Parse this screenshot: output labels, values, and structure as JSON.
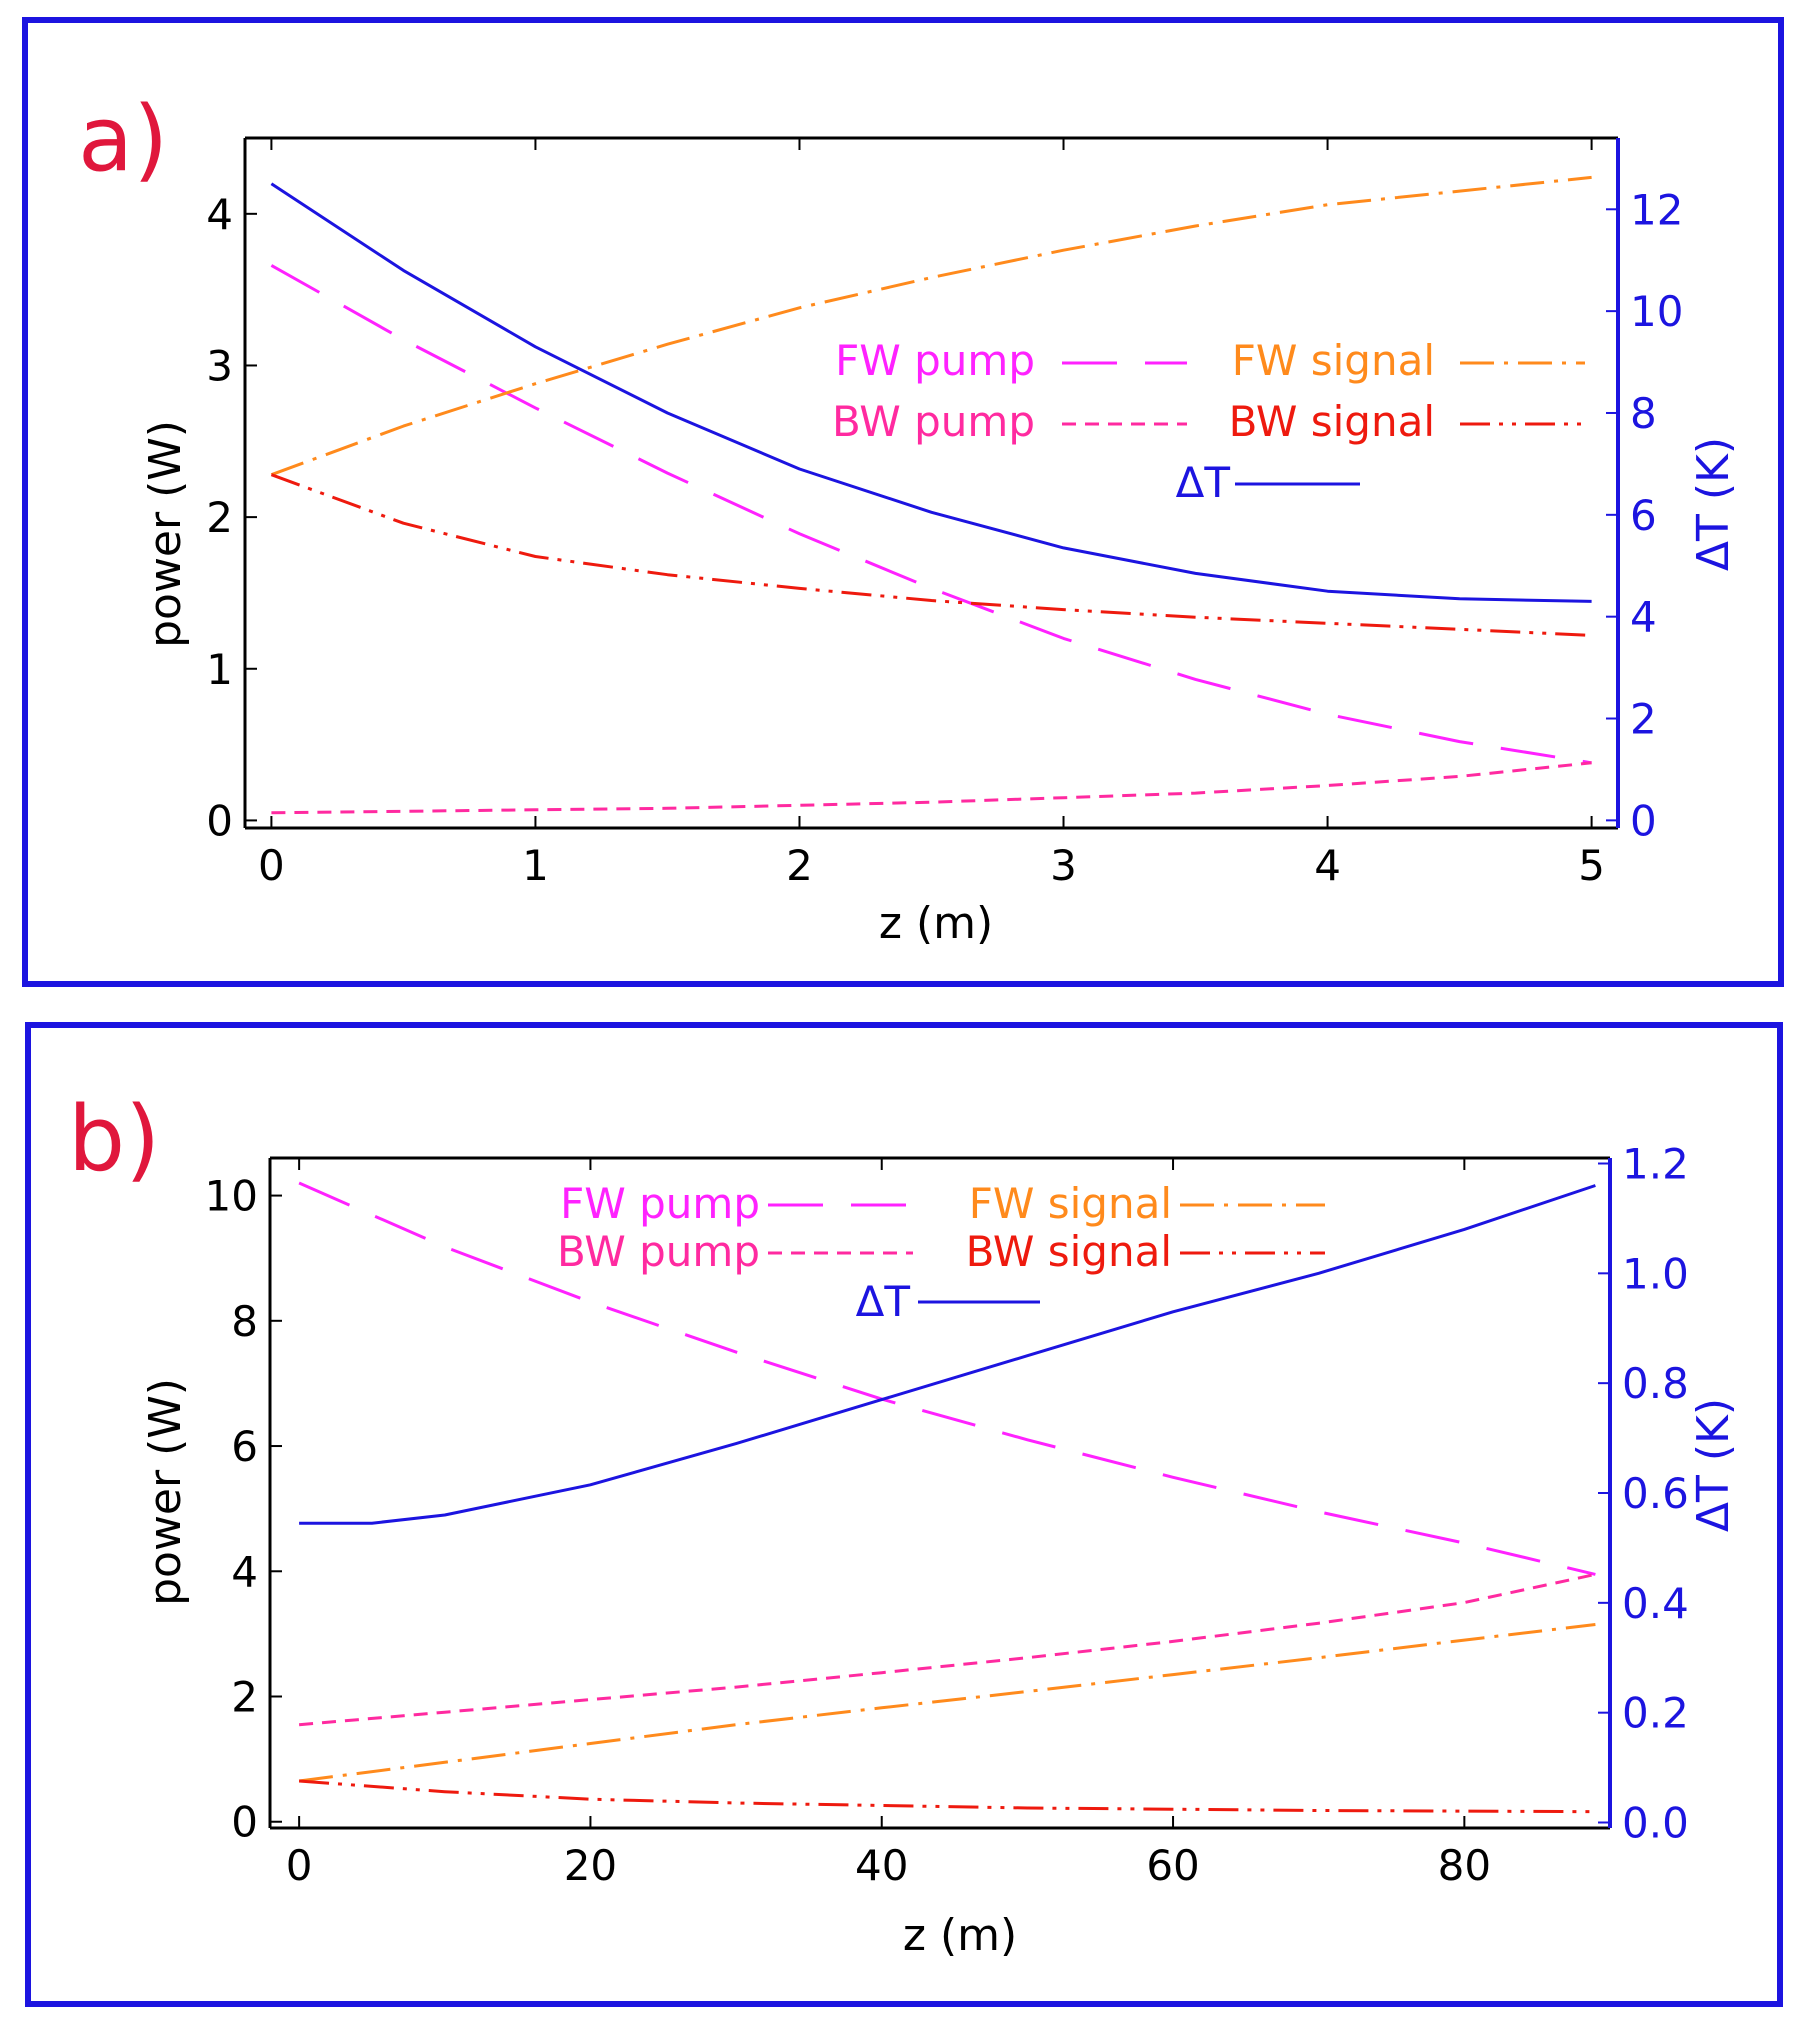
{
  "colors": {
    "frame": "#1c14e0",
    "panel_label": "#e0173c",
    "axis_left": "#000000",
    "axis_right": "#1c14e0",
    "fw_pump": "#ff22ff",
    "bw_pump": "#ff2aa0",
    "fw_signal": "#ff8a1c",
    "bw_signal": "#ee1a0e",
    "delta_t": "#1c14e0"
  },
  "chart_data": [
    {
      "panel": "a)",
      "type": "line",
      "xlabel": "z (m)",
      "ylabel": "power (W)",
      "ylabel2": "ΔT (K)",
      "xlim": [
        -0.1,
        5.1
      ],
      "ylim": [
        -0.05,
        4.5
      ],
      "y2lim": [
        -0.15,
        13.4
      ],
      "xticks": [
        0,
        1,
        2,
        3,
        4,
        5
      ],
      "yticks": [
        0,
        1,
        2,
        3,
        4
      ],
      "y2ticks": [
        0,
        2,
        4,
        6,
        8,
        10,
        12
      ],
      "legend": {
        "fw_pump": "FW pump",
        "fw_signal": "FW signal",
        "bw_pump": "BW pump",
        "bw_signal": "BW signal",
        "delta_t": "ΔT"
      },
      "series": [
        {
          "key": "fw_pump",
          "name": "FW pump",
          "axis": "left",
          "style": "longdash",
          "x": [
            0,
            0.5,
            1,
            1.5,
            2,
            2.5,
            3,
            3.5,
            4,
            4.5,
            5
          ],
          "y": [
            3.66,
            3.17,
            2.72,
            2.29,
            1.89,
            1.53,
            1.2,
            0.93,
            0.7,
            0.52,
            0.38
          ]
        },
        {
          "key": "bw_pump",
          "name": "BW pump",
          "axis": "left",
          "style": "shortdash",
          "x": [
            0,
            0.5,
            1,
            1.5,
            2,
            2.5,
            3,
            3.5,
            4,
            4.5,
            5
          ],
          "y": [
            0.05,
            0.06,
            0.07,
            0.08,
            0.1,
            0.12,
            0.15,
            0.18,
            0.23,
            0.29,
            0.38
          ]
        },
        {
          "key": "fw_signal",
          "name": "FW signal",
          "axis": "left",
          "style": "dashdot",
          "x": [
            0,
            0.5,
            1,
            1.5,
            2,
            2.5,
            3,
            3.5,
            4,
            4.5,
            5
          ],
          "y": [
            2.28,
            2.6,
            2.88,
            3.14,
            3.38,
            3.58,
            3.76,
            3.92,
            4.06,
            4.15,
            4.24
          ]
        },
        {
          "key": "bw_signal",
          "name": "BW signal",
          "axis": "left",
          "style": "dashdotdot",
          "x": [
            0,
            0.5,
            1,
            1.5,
            2,
            2.5,
            3,
            3.5,
            4,
            4.5,
            5
          ],
          "y": [
            2.28,
            1.96,
            1.74,
            1.62,
            1.53,
            1.45,
            1.39,
            1.34,
            1.3,
            1.26,
            1.22
          ]
        },
        {
          "key": "delta_t",
          "name": "ΔT",
          "axis": "right",
          "style": "solid",
          "x": [
            0,
            0.5,
            1,
            1.5,
            2,
            2.5,
            3,
            3.5,
            4,
            4.5,
            5
          ],
          "y": [
            12.5,
            10.8,
            9.3,
            8.0,
            6.9,
            6.05,
            5.35,
            4.85,
            4.5,
            4.35,
            4.3
          ]
        }
      ]
    },
    {
      "panel": "b)",
      "type": "line",
      "xlabel": "z (m)",
      "ylabel": "power (W)",
      "ylabel2": "ΔT (K)",
      "xlim": [
        -2,
        90
      ],
      "ylim": [
        -0.1,
        10.6
      ],
      "y2lim": [
        -0.01,
        1.21
      ],
      "xticks": [
        0,
        20,
        40,
        60,
        80
      ],
      "yticks": [
        0,
        2,
        4,
        6,
        8,
        10
      ],
      "y2ticks": [
        0.0,
        0.2,
        0.4,
        0.6,
        0.8,
        1.0,
        1.2
      ],
      "y2ticklabels": [
        "0.0",
        "0.2",
        "0.4",
        "0.6",
        "0.8",
        "1.0",
        "1.2"
      ],
      "legend": {
        "fw_pump": "FW pump",
        "fw_signal": "FW signal",
        "bw_pump": "BW pump",
        "bw_signal": "BW signal",
        "delta_t": "ΔT"
      },
      "series": [
        {
          "key": "fw_pump",
          "name": "FW pump",
          "axis": "left",
          "style": "longdash",
          "x": [
            0,
            10,
            20,
            30,
            40,
            50,
            60,
            70,
            80,
            89
          ],
          "y": [
            10.2,
            9.18,
            8.3,
            7.5,
            6.75,
            6.1,
            5.5,
            4.95,
            4.45,
            3.95
          ]
        },
        {
          "key": "bw_pump",
          "name": "BW pump",
          "axis": "left",
          "style": "shortdash",
          "x": [
            0,
            10,
            20,
            30,
            40,
            50,
            60,
            70,
            80,
            89
          ],
          "y": [
            1.55,
            1.75,
            1.95,
            2.15,
            2.38,
            2.62,
            2.88,
            3.17,
            3.5,
            3.95
          ]
        },
        {
          "key": "fw_signal",
          "name": "FW signal",
          "axis": "left",
          "style": "dashdot",
          "x": [
            0,
            10,
            20,
            30,
            40,
            50,
            60,
            70,
            80,
            89
          ],
          "y": [
            0.65,
            0.95,
            1.25,
            1.55,
            1.82,
            2.08,
            2.35,
            2.62,
            2.9,
            3.15
          ]
        },
        {
          "key": "bw_signal",
          "name": "BW signal",
          "axis": "left",
          "style": "dashdotdot",
          "x": [
            0,
            10,
            20,
            30,
            40,
            50,
            60,
            70,
            80,
            89
          ],
          "y": [
            0.65,
            0.48,
            0.36,
            0.3,
            0.26,
            0.22,
            0.2,
            0.18,
            0.17,
            0.16
          ]
        },
        {
          "key": "delta_t",
          "name": "ΔT",
          "axis": "right",
          "style": "solid",
          "x": [
            0,
            5,
            10,
            20,
            30,
            40,
            50,
            60,
            70,
            80,
            89
          ],
          "y": [
            0.545,
            0.545,
            0.56,
            0.615,
            0.69,
            0.77,
            0.85,
            0.93,
            1.0,
            1.08,
            1.16
          ]
        }
      ]
    }
  ]
}
